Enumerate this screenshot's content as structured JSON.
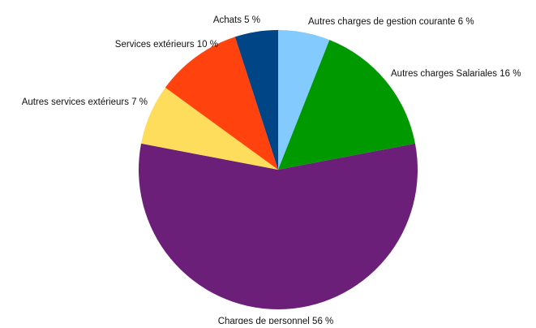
{
  "chart_data": {
    "type": "pie",
    "title": "",
    "unit": "%",
    "slices": [
      {
        "label": "Autres charges de gestion courante",
        "value": 6,
        "display": "Autres charges de gestion courante 6 %",
        "color": "#83caff"
      },
      {
        "label": "Autres charges Salariales",
        "value": 16,
        "display": "Autres charges Salariales 16 %",
        "color": "#009900"
      },
      {
        "label": "Charges de personnel",
        "value": 56,
        "display": "Charges de personnel 56 %",
        "color": "#6b1f78"
      },
      {
        "label": "Autres services extérieurs",
        "value": 7,
        "display": "Autres services extérieurs 7 %",
        "color": "#ffdd5c"
      },
      {
        "label": "Services extérieurs",
        "value": 10,
        "display": "Services extérieurs 10 %",
        "color": "#ff420e"
      },
      {
        "label": "Achats",
        "value": 5,
        "display": "Achats 5 %",
        "color": "#004586"
      }
    ],
    "legend": "none",
    "labels_outside": true
  }
}
